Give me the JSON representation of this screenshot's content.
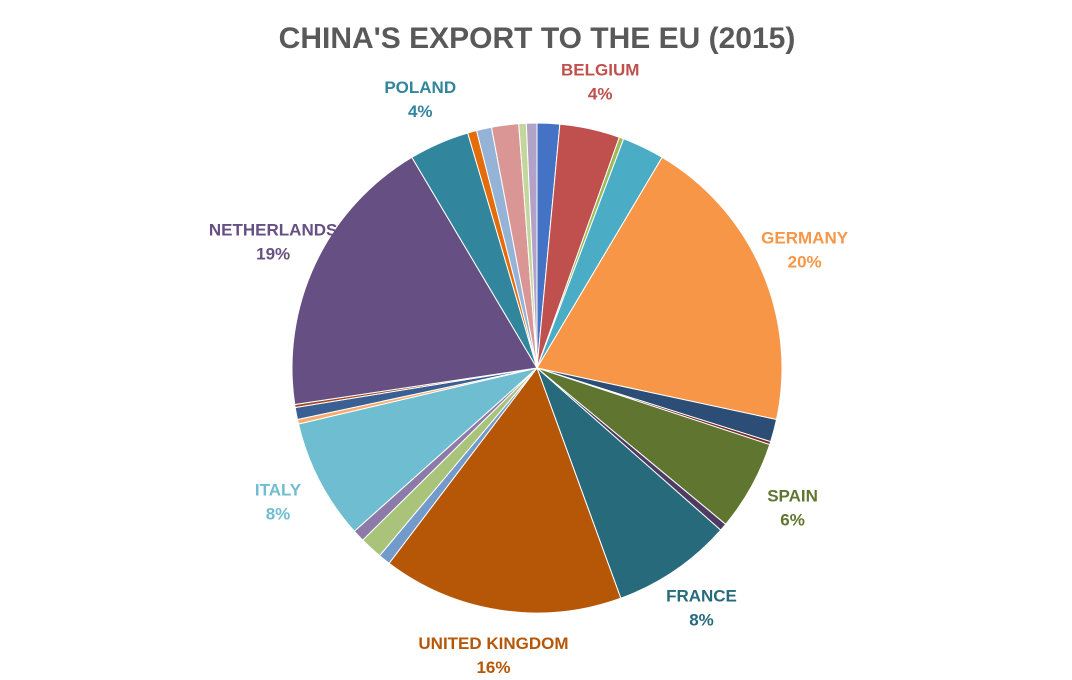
{
  "chart_data": {
    "type": "pie",
    "title": "CHINA'S EXPORT TO THE EU (2015)",
    "categories": [
      null,
      "BELGIUM",
      null,
      null,
      "GERMANY",
      null,
      null,
      "SPAIN",
      null,
      "FRANCE",
      "UNITED KINGDOM",
      null,
      null,
      null,
      "ITALY",
      null,
      null,
      null,
      "NETHERLANDS",
      "POLAND",
      null,
      null,
      null,
      null,
      null
    ],
    "values": [
      1.5,
      4,
      0.3,
      2.8,
      20,
      1.5,
      0.2,
      6,
      0.5,
      8,
      16,
      0.8,
      1.5,
      0.8,
      8,
      0.3,
      0.8,
      0.2,
      19,
      4,
      0.6,
      1,
      1.8,
      0.5,
      0.7
    ],
    "value_labels": [
      null,
      "4%",
      null,
      null,
      "20%",
      null,
      null,
      "6%",
      null,
      "8%",
      "16%",
      null,
      null,
      null,
      "8%",
      null,
      null,
      null,
      "19%",
      "4%",
      null,
      null,
      null,
      null,
      null
    ],
    "colors": [
      "#4472c4",
      "#c0504d",
      "#9bbb59",
      "#4bacc6",
      "#f79646",
      "#2c4d75",
      "#772c2a",
      "#5f7530",
      "#4d3b62",
      "#276a7c",
      "#b65708",
      "#729aca",
      "#a9c47a",
      "#8c7aa8",
      "#6fbdd1",
      "#f9ab6b",
      "#3a5f93",
      "#9e4a1f",
      "#664f82",
      "#31859c",
      "#e46c0a",
      "#95b3d7",
      "#d99694",
      "#c3d69b",
      "#b3a2c7"
    ]
  }
}
